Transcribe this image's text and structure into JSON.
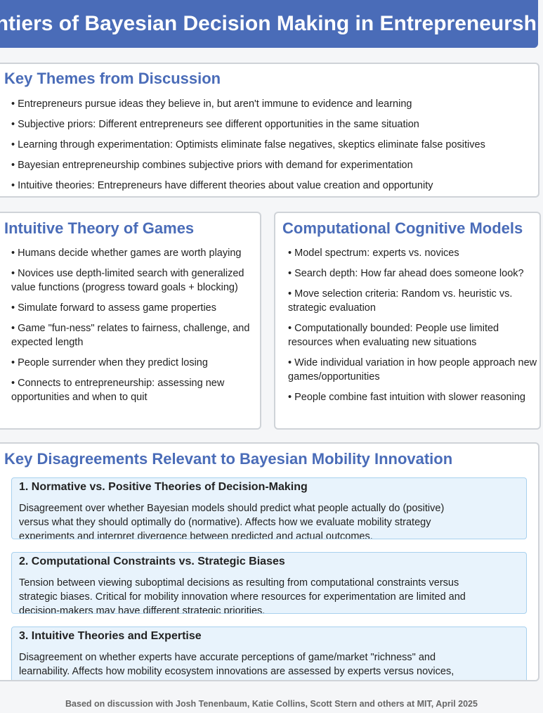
{
  "header": {
    "title": "Frontiers of Bayesian Decision Making in Entrepreneurship"
  },
  "themes": {
    "title": "Key Themes from Discussion",
    "items": [
      "Entrepreneurs pursue ideas they believe in, but aren't immune to evidence and learning",
      "Subjective priors: Different entrepreneurs see different opportunities in the same situation",
      "Learning through experimentation: Optimists eliminate false negatives, skeptics eliminate false positives",
      "Bayesian entrepreneurship combines subjective priors with demand for experimentation",
      "Intuitive theories: Entrepreneurs have different theories about value creation and opportunity"
    ]
  },
  "games": {
    "title": "Intuitive Theory of Games",
    "items": [
      "Humans decide whether games are worth playing",
      "Novices use depth-limited search with generalized value functions (progress toward goals + blocking)",
      "Simulate forward to assess game properties",
      "Game \"fun-ness\" relates to fairness, challenge, and expected length",
      "People surrender when they predict losing",
      "Connects to entrepreneurship: assessing new opportunities and when to quit"
    ]
  },
  "models": {
    "title": "Computational Cognitive Models",
    "items": [
      "Model spectrum: experts vs. novices",
      "Search depth: How far ahead does someone look?",
      "Move selection criteria: Random vs. heuristic vs. strategic evaluation",
      "Computationally bounded: People use limited resources when evaluating new situations",
      "Wide individual variation in how people approach new games/opportunities",
      "People combine fast intuition with slower reasoning"
    ]
  },
  "disagreements": {
    "title": "Key Disagreements Relevant to Bayesian Mobility Innovation",
    "items": [
      {
        "heading": "1. Normative vs. Positive Theories of Decision-Making",
        "text": "Disagreement over whether Bayesian models should predict what people actually do (positive) versus what they should optimally do (normative). Affects how we evaluate mobility strategy experiments and interpret divergence between predicted and actual outcomes."
      },
      {
        "heading": "2. Computational Constraints vs. Strategic Biases",
        "text": "Tension between viewing suboptimal decisions as resulting from computational constraints versus strategic biases. Critical for mobility innovation where resources for experimentation are limited and decision-makers may have different strategic priorities."
      },
      {
        "heading": "3. Intuitive Theories and Expertise",
        "text": "Disagreement on whether experts have accurate perceptions of game/market \"richness\" and learnability. Affects how mobility ecosystem innovations are assessed by experts versus novices, potentially biasing investment and regulatory decisions."
      }
    ]
  },
  "footer": {
    "text": "Based on discussion with Josh Tenenbaum, Katie Collins, Scott Stern and others at MIT, April 2025"
  }
}
